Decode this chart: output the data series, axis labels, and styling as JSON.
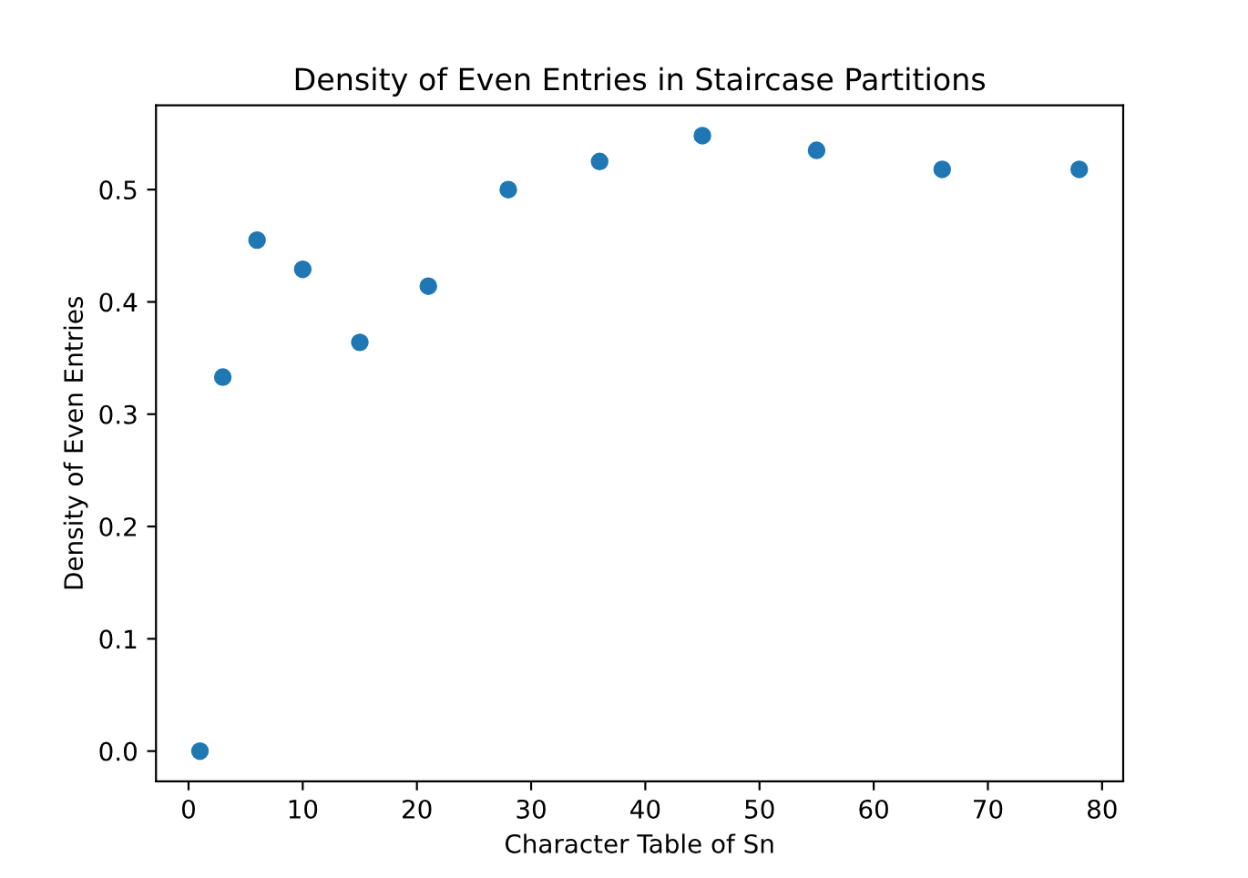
{
  "chart_data": {
    "type": "scatter",
    "title": "Density of Even Entries in Staircase Partitions",
    "xlabel": "Character Table of Sn",
    "ylabel": "Density of Even Entries",
    "x": [
      1,
      3,
      6,
      10,
      15,
      21,
      28,
      36,
      45,
      55,
      66,
      78
    ],
    "series": [
      {
        "color": "#1f77b4",
        "values": [
          0.0,
          0.333,
          0.455,
          0.429,
          0.364,
          0.414,
          0.5,
          0.525,
          0.548,
          0.535,
          0.518,
          0.518
        ]
      }
    ],
    "marker": "circle",
    "xlim": [
      -2.85,
      81.85
    ],
    "xticks": [
      0,
      10,
      20,
      30,
      40,
      50,
      60,
      70,
      80
    ],
    "ylim": [
      -0.027,
      0.575
    ],
    "yticks": [
      {
        "value": 0,
        "label": "0.0"
      },
      {
        "value": 0.1,
        "label": "0.1"
      },
      {
        "value": 0.2,
        "label": "0.2"
      },
      {
        "value": 0.3,
        "label": "0.3"
      },
      {
        "value": 0.4,
        "label": "0.4"
      },
      {
        "value": 0.5,
        "label": "0.5"
      }
    ],
    "grid": false
  }
}
